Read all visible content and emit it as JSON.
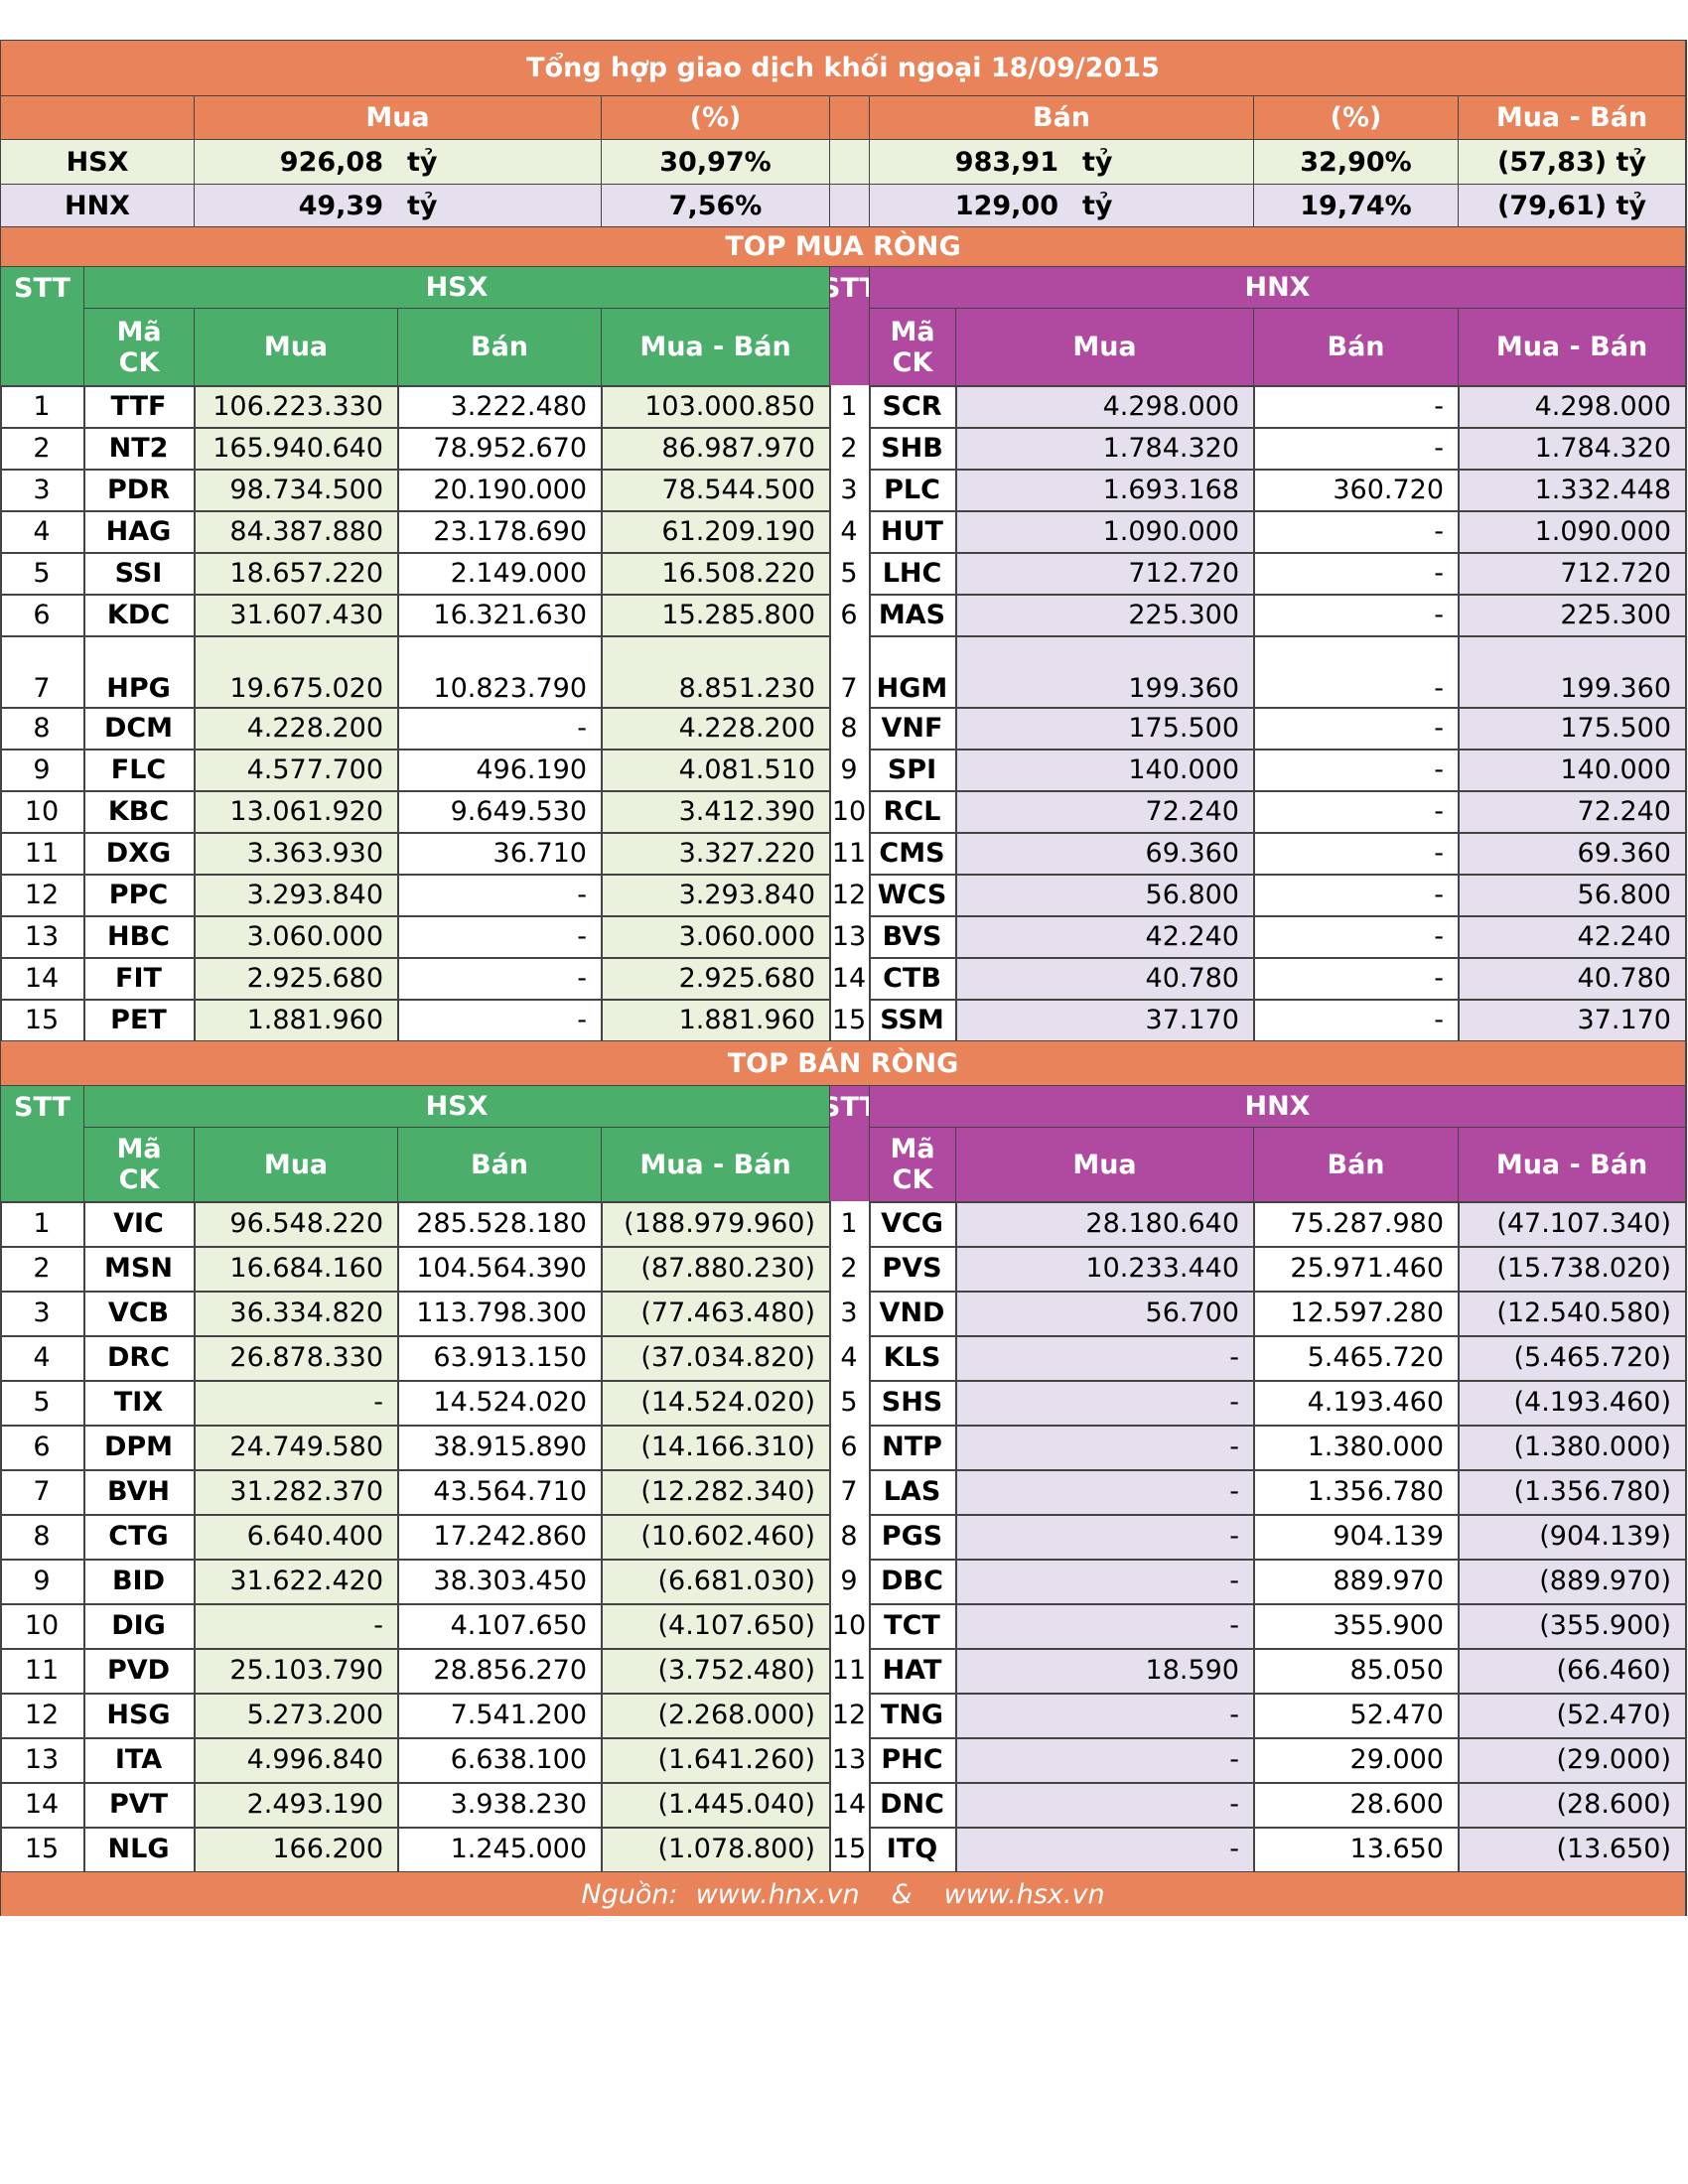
{
  "title": "Tổng hợp giao dịch khối ngoại 18/09/2015",
  "summary": {
    "headers": [
      "Mua",
      "(%)",
      "Bán",
      "(%)",
      "Mua - Bán"
    ],
    "unit": "tỷ",
    "rows": [
      {
        "exchange": "HSX",
        "buy": "926,08",
        "buy_pct": "30,97%",
        "sell": "983,91",
        "sell_pct": "32,90%",
        "net": "(57,83) tỷ"
      },
      {
        "exchange": "HNX",
        "buy": "49,39",
        "buy_pct": "7,56%",
        "sell": "129,00",
        "sell_pct": "19,74%",
        "net": "(79,61) tỷ"
      }
    ]
  },
  "columns": {
    "stt": "STT",
    "ma": "Mã",
    "ck": "CK",
    "mua": "Mua",
    "ban": "Bán",
    "net": "Mua - Bán"
  },
  "top_buy": {
    "title": "TOP MUA RÒNG",
    "hsx_label": "HSX",
    "hnx_label": "HNX",
    "hsx": [
      [
        "1",
        "TTF",
        "106.223.330",
        "3.222.480",
        "103.000.850"
      ],
      [
        "2",
        "NT2",
        "165.940.640",
        "78.952.670",
        "86.987.970"
      ],
      [
        "3",
        "PDR",
        "98.734.500",
        "20.190.000",
        "78.544.500"
      ],
      [
        "4",
        "HAG",
        "84.387.880",
        "23.178.690",
        "61.209.190"
      ],
      [
        "5",
        "SSI",
        "18.657.220",
        "2.149.000",
        "16.508.220"
      ],
      [
        "6",
        "KDC",
        "31.607.430",
        "16.321.630",
        "15.285.800"
      ],
      [
        "7",
        "HPG",
        "19.675.020",
        "10.823.790",
        "8.851.230"
      ],
      [
        "8",
        "DCM",
        "4.228.200",
        "-",
        "4.228.200"
      ],
      [
        "9",
        "FLC",
        "4.577.700",
        "496.190",
        "4.081.510"
      ],
      [
        "10",
        "KBC",
        "13.061.920",
        "9.649.530",
        "3.412.390"
      ],
      [
        "11",
        "DXG",
        "3.363.930",
        "36.710",
        "3.327.220"
      ],
      [
        "12",
        "PPC",
        "3.293.840",
        "-",
        "3.293.840"
      ],
      [
        "13",
        "HBC",
        "3.060.000",
        "-",
        "3.060.000"
      ],
      [
        "14",
        "FIT",
        "2.925.680",
        "-",
        "2.925.680"
      ],
      [
        "15",
        "PET",
        "1.881.960",
        "-",
        "1.881.960"
      ]
    ],
    "hnx": [
      [
        "1",
        "SCR",
        "4.298.000",
        "-",
        "4.298.000"
      ],
      [
        "2",
        "SHB",
        "1.784.320",
        "-",
        "1.784.320"
      ],
      [
        "3",
        "PLC",
        "1.693.168",
        "360.720",
        "1.332.448"
      ],
      [
        "4",
        "HUT",
        "1.090.000",
        "-",
        "1.090.000"
      ],
      [
        "5",
        "LHC",
        "712.720",
        "-",
        "712.720"
      ],
      [
        "6",
        "MAS",
        "225.300",
        "-",
        "225.300"
      ],
      [
        "7",
        "HGM",
        "199.360",
        "-",
        "199.360"
      ],
      [
        "8",
        "VNF",
        "175.500",
        "-",
        "175.500"
      ],
      [
        "9",
        "SPI",
        "140.000",
        "-",
        "140.000"
      ],
      [
        "10",
        "RCL",
        "72.240",
        "-",
        "72.240"
      ],
      [
        "11",
        "CMS",
        "69.360",
        "-",
        "69.360"
      ],
      [
        "12",
        "WCS",
        "56.800",
        "-",
        "56.800"
      ],
      [
        "13",
        "BVS",
        "42.240",
        "-",
        "42.240"
      ],
      [
        "14",
        "CTB",
        "40.780",
        "-",
        "40.780"
      ],
      [
        "15",
        "SSM",
        "37.170",
        "-",
        "37.170"
      ]
    ]
  },
  "top_sell": {
    "title": "TOP BÁN RÒNG",
    "hsx_label": "HSX",
    "hnx_label": "HNX",
    "hsx": [
      [
        "1",
        "VIC",
        "96.548.220",
        "285.528.180",
        "(188.979.960)"
      ],
      [
        "2",
        "MSN",
        "16.684.160",
        "104.564.390",
        "(87.880.230)"
      ],
      [
        "3",
        "VCB",
        "36.334.820",
        "113.798.300",
        "(77.463.480)"
      ],
      [
        "4",
        "DRC",
        "26.878.330",
        "63.913.150",
        "(37.034.820)"
      ],
      [
        "5",
        "TIX",
        "-",
        "14.524.020",
        "(14.524.020)"
      ],
      [
        "6",
        "DPM",
        "24.749.580",
        "38.915.890",
        "(14.166.310)"
      ],
      [
        "7",
        "BVH",
        "31.282.370",
        "43.564.710",
        "(12.282.340)"
      ],
      [
        "8",
        "CTG",
        "6.640.400",
        "17.242.860",
        "(10.602.460)"
      ],
      [
        "9",
        "BID",
        "31.622.420",
        "38.303.450",
        "(6.681.030)"
      ],
      [
        "10",
        "DIG",
        "-",
        "4.107.650",
        "(4.107.650)"
      ],
      [
        "11",
        "PVD",
        "25.103.790",
        "28.856.270",
        "(3.752.480)"
      ],
      [
        "12",
        "HSG",
        "5.273.200",
        "7.541.200",
        "(2.268.000)"
      ],
      [
        "13",
        "ITA",
        "4.996.840",
        "6.638.100",
        "(1.641.260)"
      ],
      [
        "14",
        "PVT",
        "2.493.190",
        "3.938.230",
        "(1.445.040)"
      ],
      [
        "15",
        "NLG",
        "166.200",
        "1.245.000",
        "(1.078.800)"
      ]
    ],
    "hnx": [
      [
        "1",
        "VCG",
        "28.180.640",
        "75.287.980",
        "(47.107.340)"
      ],
      [
        "2",
        "PVS",
        "10.233.440",
        "25.971.460",
        "(15.738.020)"
      ],
      [
        "3",
        "VND",
        "56.700",
        "12.597.280",
        "(12.540.580)"
      ],
      [
        "4",
        "KLS",
        "-",
        "5.465.720",
        "(5.465.720)"
      ],
      [
        "5",
        "SHS",
        "-",
        "4.193.460",
        "(4.193.460)"
      ],
      [
        "6",
        "NTP",
        "-",
        "1.380.000",
        "(1.380.000)"
      ],
      [
        "7",
        "LAS",
        "-",
        "1.356.780",
        "(1.356.780)"
      ],
      [
        "8",
        "PGS",
        "-",
        "904.139",
        "(904.139)"
      ],
      [
        "9",
        "DBC",
        "-",
        "889.970",
        "(889.970)"
      ],
      [
        "10",
        "TCT",
        "-",
        "355.900",
        "(355.900)"
      ],
      [
        "11",
        "HAT",
        "18.590",
        "85.050",
        "(66.460)"
      ],
      [
        "12",
        "TNG",
        "-",
        "52.470",
        "(52.470)"
      ],
      [
        "13",
        "PHC",
        "-",
        "29.000",
        "(29.000)"
      ],
      [
        "14",
        "DNC",
        "-",
        "28.600",
        "(28.600)"
      ],
      [
        "15",
        "ITQ",
        "-",
        "13.650",
        "(13.650)"
      ]
    ]
  },
  "footer": {
    "source_label": "Nguồn:",
    "site1": "www.hnx.vn",
    "separator": "&",
    "site2": "www.hsx.vn"
  },
  "colors": {
    "orange": "#e8835a",
    "green": "#4cae6b",
    "purple": "#b04aa1",
    "light_green": "#eaf1dc",
    "light_purple": "#e6e0ee"
  }
}
